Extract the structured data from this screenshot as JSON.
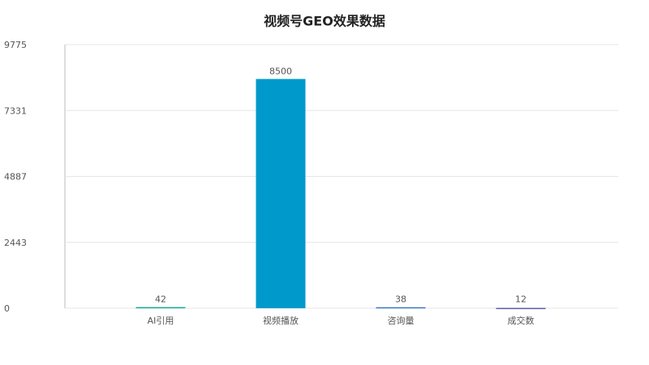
{
  "chart_data": {
    "type": "bar",
    "title": "视频号GEO效果数据",
    "categories": [
      "AI引用",
      "视频播放",
      "咨询量",
      "成交数"
    ],
    "values": [
      42,
      8500,
      38,
      12
    ],
    "colors": [
      "#1aa89c",
      "#0099cc",
      "#3a78c9",
      "#5a5aa8"
    ],
    "ylim": [
      0,
      9775
    ],
    "yticks": [
      0,
      2443,
      4887,
      7331,
      9775
    ],
    "grid": true
  }
}
